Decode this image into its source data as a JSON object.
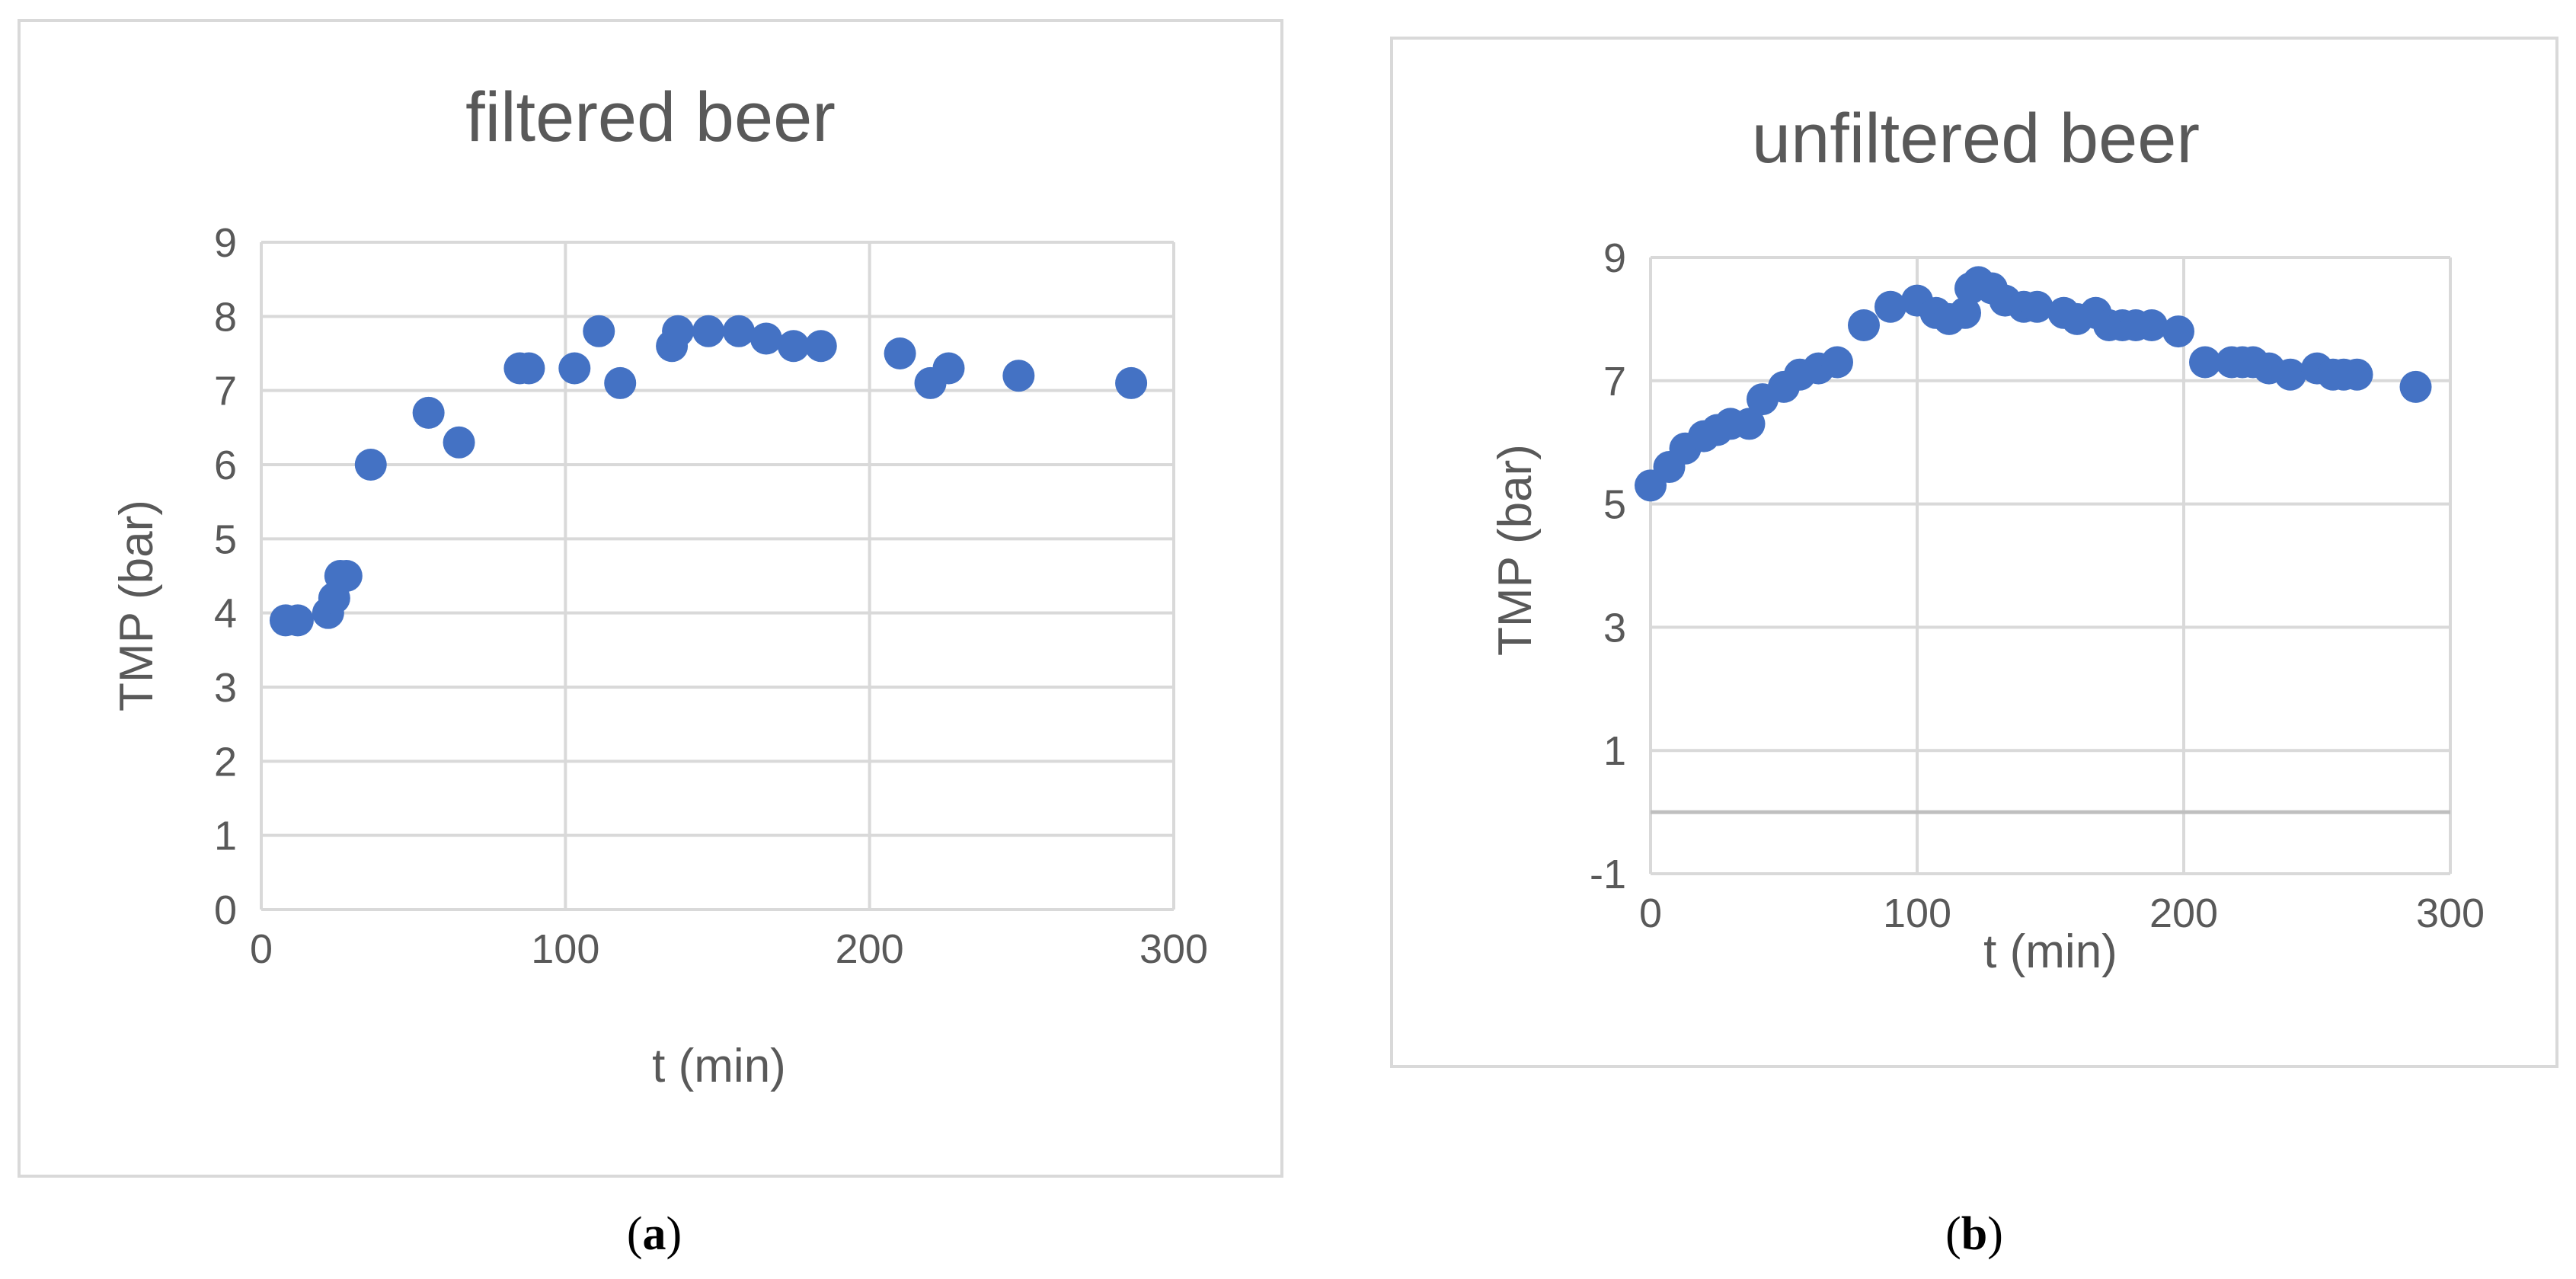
{
  "chart_data": [
    {
      "type": "scatter",
      "title": "filtered beer",
      "xlabel": "t (min)",
      "ylabel": "TMP (bar)",
      "xlim": [
        0,
        300
      ],
      "ylim": [
        0,
        9
      ],
      "xticks": [
        0,
        100,
        200,
        300
      ],
      "yticks": [
        0,
        1,
        2,
        3,
        4,
        5,
        6,
        7,
        8,
        9
      ],
      "grid": true,
      "legend": "none",
      "marker_color": "#4472C4",
      "caption_letter": "a",
      "series": [
        {
          "x": [
            8,
            12,
            22,
            24,
            26,
            28,
            36,
            55,
            65,
            85,
            88,
            103,
            111,
            118,
            135,
            137,
            147,
            157,
            166,
            175,
            184,
            210,
            220,
            226,
            249,
            286
          ],
          "y": [
            3.9,
            3.9,
            4.0,
            4.2,
            4.5,
            4.5,
            6.0,
            6.7,
            6.3,
            7.3,
            7.3,
            7.3,
            7.8,
            7.1,
            7.6,
            7.8,
            7.8,
            7.8,
            7.7,
            7.6,
            7.6,
            7.5,
            7.1,
            7.3,
            7.2,
            7.1
          ]
        }
      ]
    },
    {
      "type": "scatter",
      "title": "unfiltered beer",
      "xlabel": "t (min)",
      "ylabel": "TMP (bar)",
      "xlim": [
        0,
        300
      ],
      "ylim": [
        -1,
        9
      ],
      "xticks": [
        0,
        100,
        200,
        300
      ],
      "yticks": [
        -1,
        1,
        3,
        5,
        7,
        9
      ],
      "grid": true,
      "legend": "none",
      "marker_color": "#4472C4",
      "caption_letter": "b",
      "series": [
        {
          "x": [
            0,
            7,
            13,
            20,
            25,
            30,
            37,
            42,
            50,
            56,
            63,
            70,
            80,
            90,
            100,
            107,
            112,
            118,
            120,
            123,
            128,
            133,
            140,
            145,
            155,
            160,
            167,
            172,
            177,
            182,
            188,
            198,
            208,
            218,
            222,
            226,
            232,
            240,
            250,
            256,
            260,
            265,
            287
          ],
          "y": [
            5.3,
            5.6,
            5.9,
            6.1,
            6.2,
            6.3,
            6.3,
            6.7,
            6.9,
            7.1,
            7.2,
            7.3,
            7.9,
            8.2,
            8.3,
            8.1,
            8.0,
            8.1,
            8.5,
            8.6,
            8.5,
            8.3,
            8.2,
            8.2,
            8.1,
            8.0,
            8.1,
            7.9,
            7.9,
            7.9,
            7.9,
            7.8,
            7.3,
            7.3,
            7.3,
            7.3,
            7.2,
            7.1,
            7.2,
            7.1,
            7.1,
            7.1,
            6.9
          ]
        }
      ]
    }
  ]
}
